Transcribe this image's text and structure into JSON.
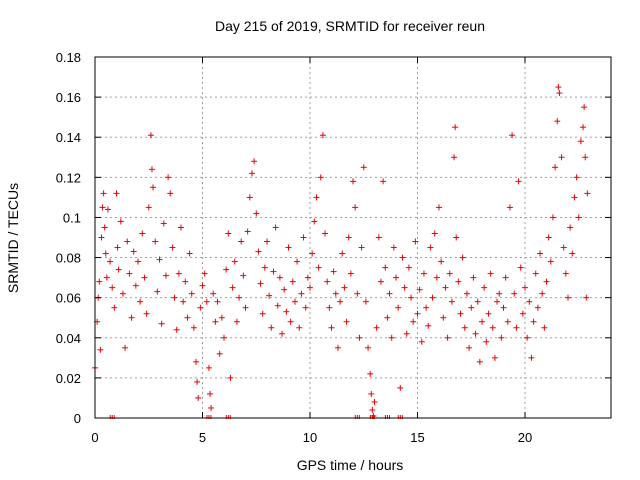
{
  "chart_data": {
    "type": "scatter",
    "title": "Day 215 of 2019, SRMTID for receiver reun",
    "xlabel": "GPS time / hours",
    "ylabel": "SRMTID / TECUs",
    "xlim": [
      0,
      24
    ],
    "ylim": [
      0,
      0.18
    ],
    "x_ticks": [
      0,
      5,
      10,
      15,
      20
    ],
    "x_tick_labels": [
      "0",
      "5",
      "10",
      "15",
      "20"
    ],
    "y_ticks": [
      0,
      0.02,
      0.04,
      0.06,
      0.08,
      0.1,
      0.12,
      0.14,
      0.16,
      0.18
    ],
    "y_tick_labels": [
      "0",
      "0.02",
      "0.04",
      "0.06",
      "0.08",
      "0.1",
      "0.12",
      "0.14",
      "0.16",
      "0.18"
    ],
    "grid": true,
    "marker": "+",
    "color": "#ee0000",
    "series": [
      {
        "name": "SRMTID",
        "points": [
          [
            0.0,
            0.025
          ],
          [
            0.1,
            0.048
          ],
          [
            0.15,
            0.06
          ],
          [
            0.2,
            0.068
          ],
          [
            0.25,
            0.034
          ],
          [
            0.3,
            0.09
          ],
          [
            0.35,
            0.105
          ],
          [
            0.4,
            0.112
          ],
          [
            0.45,
            0.095
          ],
          [
            0.5,
            0.082
          ],
          [
            0.55,
            0.07
          ],
          [
            0.6,
            0.104
          ],
          [
            0.7,
            0.078
          ],
          [
            0.8,
            0.065
          ],
          [
            0.9,
            0.055
          ],
          [
            1.0,
            0.112
          ],
          [
            1.05,
            0.085
          ],
          [
            1.1,
            0.074
          ],
          [
            1.2,
            0.098
          ],
          [
            1.3,
            0.062
          ],
          [
            1.4,
            0.035
          ],
          [
            1.5,
            0.088
          ],
          [
            1.6,
            0.072
          ],
          [
            1.7,
            0.05
          ],
          [
            1.8,
            0.083
          ],
          [
            1.9,
            0.066
          ],
          [
            2.0,
            0.078
          ],
          [
            2.1,
            0.058
          ],
          [
            2.2,
            0.092
          ],
          [
            2.3,
            0.07
          ],
          [
            2.4,
            0.052
          ],
          [
            2.5,
            0.105
          ],
          [
            2.6,
            0.141
          ],
          [
            2.65,
            0.124
          ],
          [
            2.7,
            0.115
          ],
          [
            2.8,
            0.088
          ],
          [
            2.9,
            0.063
          ],
          [
            3.0,
            0.079
          ],
          [
            3.1,
            0.047
          ],
          [
            3.2,
            0.097
          ],
          [
            3.3,
            0.071
          ],
          [
            3.4,
            0.12
          ],
          [
            3.5,
            0.112
          ],
          [
            3.6,
            0.085
          ],
          [
            3.7,
            0.06
          ],
          [
            3.8,
            0.044
          ],
          [
            3.9,
            0.072
          ],
          [
            4.0,
            0.095
          ],
          [
            4.1,
            0.058
          ],
          [
            4.2,
            0.068
          ],
          [
            4.3,
            0.05
          ],
          [
            4.4,
            0.082
          ],
          [
            4.5,
            0.062
          ],
          [
            4.6,
            0.045
          ],
          [
            4.7,
            0.028
          ],
          [
            4.75,
            0.018
          ],
          [
            4.8,
            0.01
          ],
          [
            4.9,
            0.055
          ],
          [
            5.0,
            0.066
          ],
          [
            5.1,
            0.072
          ],
          [
            5.2,
            0.058
          ],
          [
            5.3,
            0.025
          ],
          [
            5.35,
            0.012
          ],
          [
            5.4,
            0.005
          ],
          [
            5.5,
            0.062
          ],
          [
            5.6,
            0.048
          ],
          [
            5.7,
            0.058
          ],
          [
            5.8,
            0.032
          ],
          [
            5.9,
            0.05
          ],
          [
            6.0,
            0.04
          ],
          [
            6.1,
            0.074
          ],
          [
            6.2,
            0.092
          ],
          [
            6.3,
            0.02
          ],
          [
            6.4,
            0.065
          ],
          [
            6.5,
            0.078
          ],
          [
            6.6,
            0.048
          ],
          [
            6.7,
            0.06
          ],
          [
            6.8,
            0.088
          ],
          [
            6.9,
            0.071
          ],
          [
            7.0,
            0.055
          ],
          [
            7.1,
            0.093
          ],
          [
            7.2,
            0.11
          ],
          [
            7.3,
            0.122
          ],
          [
            7.4,
            0.128
          ],
          [
            7.5,
            0.102
          ],
          [
            7.6,
            0.083
          ],
          [
            7.7,
            0.067
          ],
          [
            7.8,
            0.052
          ],
          [
            7.9,
            0.075
          ],
          [
            8.0,
            0.088
          ],
          [
            8.1,
            0.061
          ],
          [
            8.2,
            0.045
          ],
          [
            8.3,
            0.073
          ],
          [
            8.4,
            0.095
          ],
          [
            8.5,
            0.056
          ],
          [
            8.6,
            0.07
          ],
          [
            8.7,
            0.042
          ],
          [
            8.8,
            0.064
          ],
          [
            8.9,
            0.053
          ],
          [
            9.0,
            0.085
          ],
          [
            9.1,
            0.048
          ],
          [
            9.2,
            0.068
          ],
          [
            9.3,
            0.058
          ],
          [
            9.4,
            0.078
          ],
          [
            9.5,
            0.045
          ],
          [
            9.6,
            0.062
          ],
          [
            9.7,
            0.09
          ],
          [
            9.8,
            0.055
          ],
          [
            9.9,
            0.07
          ],
          [
            10.0,
            0.065
          ],
          [
            10.1,
            0.082
          ],
          [
            10.2,
            0.098
          ],
          [
            10.3,
            0.11
          ],
          [
            10.4,
            0.075
          ],
          [
            10.5,
            0.12
          ],
          [
            10.6,
            0.141
          ],
          [
            10.7,
            0.092
          ],
          [
            10.8,
            0.068
          ],
          [
            10.9,
            0.055
          ],
          [
            11.0,
            0.045
          ],
          [
            11.1,
            0.073
          ],
          [
            11.2,
            0.062
          ],
          [
            11.3,
            0.035
          ],
          [
            11.4,
            0.058
          ],
          [
            11.5,
            0.082
          ],
          [
            11.6,
            0.065
          ],
          [
            11.7,
            0.048
          ],
          [
            11.8,
            0.09
          ],
          [
            11.9,
            0.072
          ],
          [
            12.0,
            0.118
          ],
          [
            12.1,
            0.105
          ],
          [
            12.2,
            0.062
          ],
          [
            12.3,
            0.04
          ],
          [
            12.4,
            0.085
          ],
          [
            12.5,
            0.125
          ],
          [
            12.6,
            0.058
          ],
          [
            12.7,
            0.035
          ],
          [
            12.8,
            0.022
          ],
          [
            12.85,
            0.012
          ],
          [
            12.9,
            0.004
          ],
          [
            12.95,
            0.001
          ],
          [
            13.0,
            0.008
          ],
          [
            13.1,
            0.045
          ],
          [
            13.2,
            0.09
          ],
          [
            13.3,
            0.068
          ],
          [
            13.4,
            0.118
          ],
          [
            13.5,
            0.075
          ],
          [
            13.6,
            0.05
          ],
          [
            13.7,
            0.062
          ],
          [
            13.8,
            0.04
          ],
          [
            13.9,
            0.085
          ],
          [
            14.0,
            0.07
          ],
          [
            14.1,
            0.055
          ],
          [
            14.2,
            0.015
          ],
          [
            14.3,
            0.08
          ],
          [
            14.4,
            0.065
          ],
          [
            14.5,
            0.042
          ],
          [
            14.6,
            0.075
          ],
          [
            14.7,
            0.06
          ],
          [
            14.8,
            0.048
          ],
          [
            14.9,
            0.088
          ],
          [
            15.0,
            0.052
          ],
          [
            15.1,
            0.064
          ],
          [
            15.2,
            0.038
          ],
          [
            15.3,
            0.072
          ],
          [
            15.4,
            0.055
          ],
          [
            15.5,
            0.046
          ],
          [
            15.6,
            0.085
          ],
          [
            15.7,
            0.06
          ],
          [
            15.8,
            0.092
          ],
          [
            15.9,
            0.07
          ],
          [
            16.0,
            0.105
          ],
          [
            16.1,
            0.078
          ],
          [
            16.2,
            0.05
          ],
          [
            16.3,
            0.065
          ],
          [
            16.4,
            0.04
          ],
          [
            16.5,
            0.072
          ],
          [
            16.6,
            0.058
          ],
          [
            16.7,
            0.13
          ],
          [
            16.75,
            0.145
          ],
          [
            16.8,
            0.09
          ],
          [
            16.9,
            0.068
          ],
          [
            17.0,
            0.052
          ],
          [
            17.1,
            0.08
          ],
          [
            17.2,
            0.045
          ],
          [
            17.3,
            0.062
          ],
          [
            17.4,
            0.035
          ],
          [
            17.5,
            0.055
          ],
          [
            17.6,
            0.07
          ],
          [
            17.7,
            0.042
          ],
          [
            17.8,
            0.058
          ],
          [
            17.9,
            0.028
          ],
          [
            18.0,
            0.048
          ],
          [
            18.1,
            0.065
          ],
          [
            18.2,
            0.038
          ],
          [
            18.3,
            0.052
          ],
          [
            18.4,
            0.072
          ],
          [
            18.5,
            0.045
          ],
          [
            18.6,
            0.03
          ],
          [
            18.7,
            0.058
          ],
          [
            18.8,
            0.062
          ],
          [
            18.9,
            0.04
          ],
          [
            19.0,
            0.055
          ],
          [
            19.1,
            0.07
          ],
          [
            19.2,
            0.048
          ],
          [
            19.3,
            0.105
          ],
          [
            19.4,
            0.141
          ],
          [
            19.5,
            0.062
          ],
          [
            19.6,
            0.045
          ],
          [
            19.7,
            0.118
          ],
          [
            19.8,
            0.075
          ],
          [
            19.9,
            0.052
          ],
          [
            20.0,
            0.065
          ],
          [
            20.1,
            0.04
          ],
          [
            20.2,
            0.058
          ],
          [
            20.3,
            0.03
          ],
          [
            20.4,
            0.048
          ],
          [
            20.5,
            0.072
          ],
          [
            20.6,
            0.055
          ],
          [
            20.7,
            0.082
          ],
          [
            20.8,
            0.062
          ],
          [
            20.9,
            0.045
          ],
          [
            21.0,
            0.068
          ],
          [
            21.1,
            0.09
          ],
          [
            21.2,
            0.078
          ],
          [
            21.3,
            0.1
          ],
          [
            21.4,
            0.125
          ],
          [
            21.5,
            0.148
          ],
          [
            21.55,
            0.165
          ],
          [
            21.6,
            0.162
          ],
          [
            21.7,
            0.13
          ],
          [
            21.8,
            0.085
          ],
          [
            21.9,
            0.072
          ],
          [
            22.0,
            0.06
          ],
          [
            22.1,
            0.095
          ],
          [
            22.2,
            0.082
          ],
          [
            22.3,
            0.11
          ],
          [
            22.4,
            0.12
          ],
          [
            22.5,
            0.1
          ],
          [
            22.6,
            0.138
          ],
          [
            22.7,
            0.145
          ],
          [
            22.75,
            0.155
          ],
          [
            22.8,
            0.13
          ],
          [
            22.85,
            0.06
          ],
          [
            22.9,
            0.112
          ]
        ]
      }
    ],
    "zero_points_x": [
      0.8,
      5.3,
      6.2,
      12.2,
      12.9,
      13.6,
      14.2
    ]
  }
}
